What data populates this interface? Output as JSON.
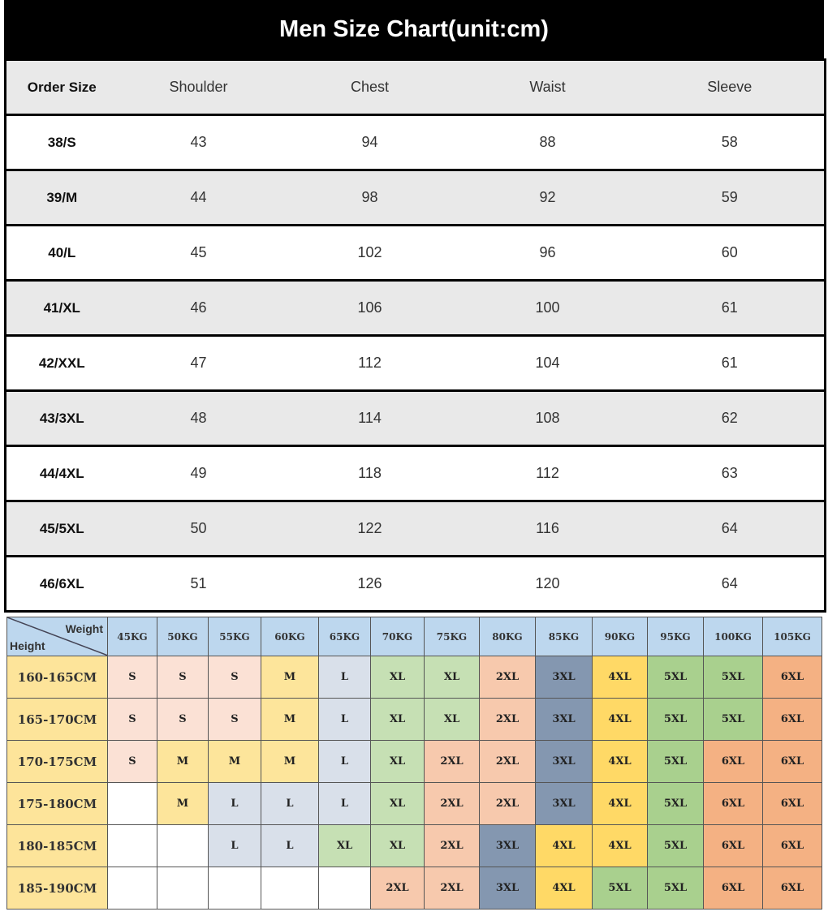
{
  "title": "Men Size Chart(unit:cm)",
  "size_table": {
    "headers": [
      "Order Size",
      "Shoulder",
      "Chest",
      "Waist",
      "Sleeve"
    ],
    "rows": [
      [
        "38/S",
        "43",
        "94",
        "88",
        "58"
      ],
      [
        "39/M",
        "44",
        "98",
        "92",
        "59"
      ],
      [
        "40/L",
        "45",
        "102",
        "96",
        "60"
      ],
      [
        "41/XL",
        "46",
        "106",
        "100",
        "61"
      ],
      [
        "42/XXL",
        "47",
        "112",
        "104",
        "61"
      ],
      [
        "43/3XL",
        "48",
        "114",
        "108",
        "62"
      ],
      [
        "44/4XL",
        "49",
        "118",
        "112",
        "63"
      ],
      [
        "45/5XL",
        "50",
        "122",
        "116",
        "64"
      ],
      [
        "46/6XL",
        "51",
        "126",
        "120",
        "64"
      ]
    ]
  },
  "recommend_table": {
    "corner_weight": "Weight",
    "corner_height": "Height",
    "weights": [
      "45KG",
      "50KG",
      "55KG",
      "60KG",
      "65KG",
      "70KG",
      "75KG",
      "80KG",
      "85KG",
      "90KG",
      "95KG",
      "100KG",
      "105KG"
    ],
    "rows": [
      {
        "height": "160-165CM",
        "sizes": [
          "S",
          "S",
          "S",
          "M",
          "L",
          "XL",
          "XL",
          "2XL",
          "3XL",
          "4XL",
          "5XL",
          "5XL",
          "6XL"
        ]
      },
      {
        "height": "165-170CM",
        "sizes": [
          "S",
          "S",
          "S",
          "M",
          "L",
          "XL",
          "XL",
          "2XL",
          "3XL",
          "4XL",
          "5XL",
          "5XL",
          "6XL"
        ]
      },
      {
        "height": "170-175CM",
        "sizes": [
          "S",
          "M",
          "M",
          "M",
          "L",
          "XL",
          "2XL",
          "2XL",
          "3XL",
          "4XL",
          "5XL",
          "6XL",
          "6XL"
        ]
      },
      {
        "height": "175-180CM",
        "sizes": [
          "",
          "M",
          "L",
          "L",
          "L",
          "XL",
          "2XL",
          "2XL",
          "3XL",
          "4XL",
          "5XL",
          "6XL",
          "6XL"
        ]
      },
      {
        "height": "180-185CM",
        "sizes": [
          "",
          "",
          "L",
          "L",
          "XL",
          "XL",
          "2XL",
          "3XL",
          "4XL",
          "4XL",
          "5XL",
          "6XL",
          "6XL"
        ]
      },
      {
        "height": "185-190CM",
        "sizes": [
          "",
          "",
          "",
          "",
          "",
          "2XL",
          "2XL",
          "3XL",
          "4XL",
          "5XL",
          "5XL",
          "6XL",
          "6XL"
        ]
      }
    ],
    "size_colors": {
      "S": "#fbe1d5",
      "M": "#fde59b",
      "L": "#d9e0ea",
      "XL": "#c6e0b4",
      "2XL": "#f7c9ad",
      "3XL": "#8497b0",
      "4XL": "#ffd966",
      "5XL": "#a9d08e",
      "6XL": "#f4b183",
      "": "#ffffff"
    }
  }
}
